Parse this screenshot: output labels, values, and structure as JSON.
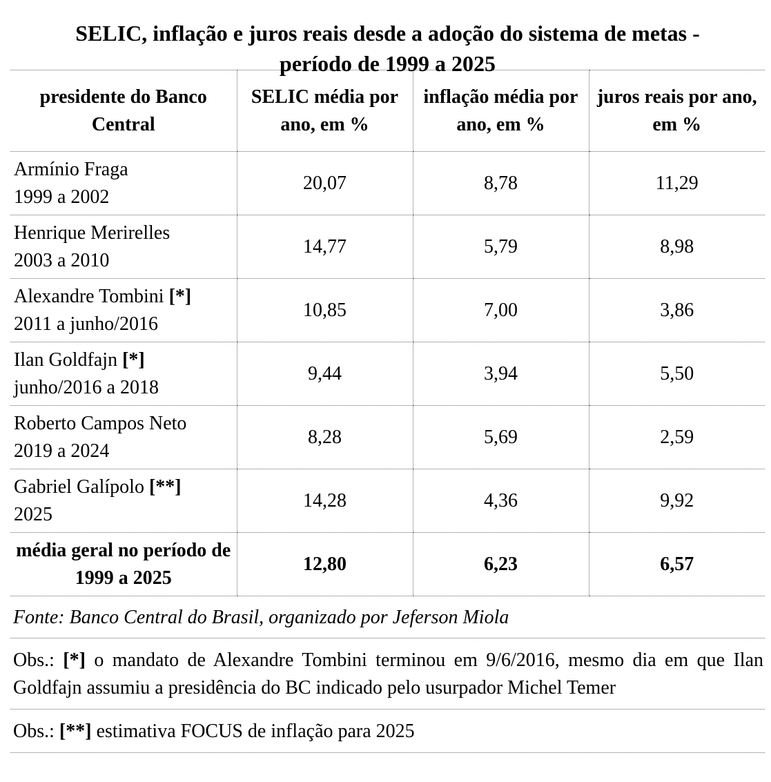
{
  "title_line1": "SELIC, inflação e juros reais desde a adoção do sistema de metas -",
  "title_line2": "período de 1999 a 2025",
  "table": {
    "header": [
      "presidente do Banco Central",
      "SELIC média por ano, em %",
      "inflação média por ano, em %",
      "juros reais por ano, em %"
    ],
    "rows": [
      {
        "name": "Armínio Fraga",
        "marker": null,
        "period": "1999 a 2002",
        "values": [
          "20,07",
          "8,78",
          "11,29"
        ]
      },
      {
        "name": "Henrique Merirelles",
        "marker": null,
        "period": "2003 a 2010",
        "values": [
          "14,77",
          "5,79",
          "8,98"
        ]
      },
      {
        "name": "Alexandre Tombini",
        "marker": "[*]",
        "period": "2011 a junho/2016",
        "values": [
          "10,85",
          "7,00",
          "3,86"
        ]
      },
      {
        "name": "Ilan Goldfajn",
        "marker": "[*]",
        "period": "junho/2016 a 2018",
        "values": [
          "9,44",
          "3,94",
          "5,50"
        ]
      },
      {
        "name": "Roberto Campos Neto",
        "marker": null,
        "period": "2019 a 2024",
        "values": [
          "8,28",
          "5,69",
          "2,59"
        ]
      },
      {
        "name": "Gabriel Galípolo",
        "marker": "[**]",
        "period": "2025",
        "values": [
          "14,28",
          "4,36",
          "9,92"
        ]
      }
    ],
    "total": {
      "label": "média geral no período de 1999 a 2025",
      "values": [
        "12,80",
        "6,23",
        "6,57"
      ]
    }
  },
  "source": "Fonte: Banco Central do Brasil, organizado por Jeferson Miola",
  "notes": [
    {
      "prefix": "Obs.:",
      "marker": "[*]",
      "text": "o mandato de Alexandre Tombini terminou em 9/6/2016, mesmo dia em que Ilan Goldfajn assumiu a presidência do BC indicado pelo usurpador Michel Temer"
    },
    {
      "prefix": "Obs.:",
      "marker": "[**]",
      "text": "estimativa FOCUS de inflação para 2025"
    }
  ]
}
